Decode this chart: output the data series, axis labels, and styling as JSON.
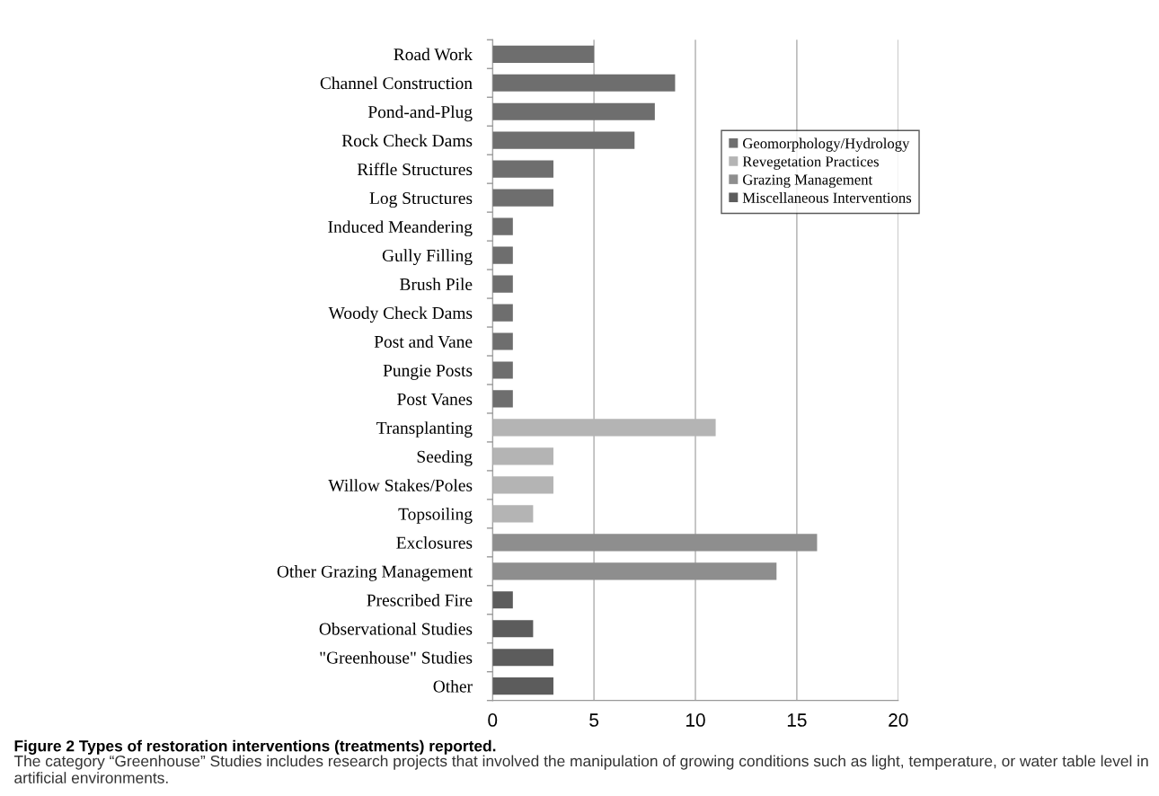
{
  "chart_data": {
    "type": "bar",
    "orientation": "horizontal",
    "title": "Figure 2 Types of restoration interventions (treatments) reported.",
    "annotations": [
      "The category “Greenhouse” Studies includes research projects that involved the manipulation of growing conditions such as light, temperature, or water table level in artificial environments."
    ],
    "categories": [
      "Road Work",
      "Channel Construction",
      "Pond-and-Plug",
      "Rock Check Dams",
      "Riffle Structures",
      "Log Structures",
      "Induced Meandering",
      "Gully Filling",
      "Brush Pile",
      "Woody Check Dams",
      "Post and Vane",
      "Pungie Posts",
      "Post Vanes",
      "Transplanting",
      "Seeding",
      "Willow Stakes/Poles",
      "Topsoiling",
      "Exclosures",
      "Other Grazing Management",
      "Prescribed Fire",
      "Observational Studies",
      "\"Greenhouse\" Studies",
      "Other"
    ],
    "series": [
      {
        "name": "Geomorphology/Hydrology",
        "color": "#6e6e6e",
        "values": [
          5,
          9,
          8,
          7,
          3,
          3,
          1,
          1,
          1,
          1,
          1,
          1,
          1,
          null,
          null,
          null,
          null,
          null,
          null,
          null,
          null,
          null,
          null
        ]
      },
      {
        "name": "Revegetation Practices",
        "color": "#b4b4b4",
        "values": [
          null,
          null,
          null,
          null,
          null,
          null,
          null,
          null,
          null,
          null,
          null,
          null,
          null,
          11,
          3,
          3,
          2,
          null,
          null,
          null,
          null,
          null,
          null
        ]
      },
      {
        "name": "Grazing Management",
        "color": "#8e8e8e",
        "values": [
          null,
          null,
          null,
          null,
          null,
          null,
          null,
          null,
          null,
          null,
          null,
          null,
          null,
          null,
          null,
          null,
          null,
          16,
          14,
          null,
          null,
          null,
          null
        ]
      },
      {
        "name": "Miscellaneous Interventions",
        "color": "#5c5c5c",
        "values": [
          null,
          null,
          null,
          null,
          null,
          null,
          null,
          null,
          null,
          null,
          null,
          null,
          null,
          null,
          null,
          null,
          null,
          null,
          null,
          1,
          2,
          3,
          3
        ]
      }
    ],
    "xlim": [
      0,
      20
    ],
    "xticks": [
      0,
      5,
      10,
      15,
      20
    ],
    "grid": "x",
    "legend": "right"
  }
}
